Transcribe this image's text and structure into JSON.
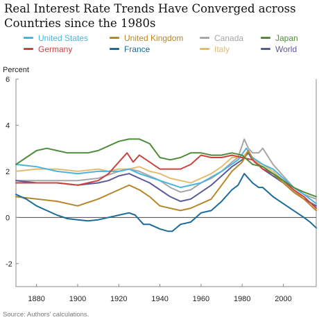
{
  "title": "Real Interest Rate Trends Have Converged across Countries since the 1980s",
  "source": "Source: Authors' calculations.",
  "chart_data": {
    "type": "line",
    "title": "Real Interest Rate Trends Have Converged across Countries since the 1980s",
    "xlabel": "",
    "ylabel": "Percent",
    "xlim": [
      1870,
      2016
    ],
    "ylim": [
      -3,
      6
    ],
    "x_ticks": [
      1880,
      1900,
      1920,
      1940,
      1960,
      1980,
      2000
    ],
    "y_ticks": [
      6,
      4,
      2,
      0,
      -2
    ],
    "grid": false,
    "zero_line": true,
    "legend_position": "top",
    "series": [
      {
        "name": "United States",
        "color": "#4bb3e0",
        "points": [
          [
            1870,
            2.3
          ],
          [
            1880,
            2.2
          ],
          [
            1890,
            2.0
          ],
          [
            1900,
            1.9
          ],
          [
            1910,
            2.0
          ],
          [
            1920,
            2.0
          ],
          [
            1925,
            2.1
          ],
          [
            1930,
            1.9
          ],
          [
            1940,
            1.6
          ],
          [
            1950,
            1.3
          ],
          [
            1960,
            1.5
          ],
          [
            1970,
            2.0
          ],
          [
            1978,
            2.5
          ],
          [
            1982,
            3.0
          ],
          [
            1985,
            2.6
          ],
          [
            1990,
            2.3
          ],
          [
            1995,
            2.1
          ],
          [
            2000,
            1.7
          ],
          [
            2005,
            1.3
          ],
          [
            2010,
            1.0
          ],
          [
            2016,
            0.6
          ]
        ]
      },
      {
        "name": "Germany",
        "color": "#c9443e",
        "points": [
          [
            1870,
            1.5
          ],
          [
            1880,
            1.5
          ],
          [
            1890,
            1.5
          ],
          [
            1900,
            1.4
          ],
          [
            1910,
            1.6
          ],
          [
            1915,
            1.9
          ],
          [
            1920,
            2.4
          ],
          [
            1924,
            2.8
          ],
          [
            1927,
            2.4
          ],
          [
            1930,
            2.7
          ],
          [
            1935,
            2.4
          ],
          [
            1940,
            2.1
          ],
          [
            1950,
            2.1
          ],
          [
            1955,
            2.3
          ],
          [
            1960,
            2.7
          ],
          [
            1965,
            2.6
          ],
          [
            1970,
            2.6
          ],
          [
            1975,
            2.7
          ],
          [
            1980,
            2.6
          ],
          [
            1985,
            2.5
          ],
          [
            1990,
            2.1
          ],
          [
            1995,
            1.9
          ],
          [
            2000,
            1.6
          ],
          [
            2005,
            1.2
          ],
          [
            2010,
            0.9
          ],
          [
            2016,
            0.4
          ]
        ]
      },
      {
        "name": "United Kingdom",
        "color": "#b8862a",
        "points": [
          [
            1870,
            0.9
          ],
          [
            1880,
            0.8
          ],
          [
            1890,
            0.7
          ],
          [
            1900,
            0.5
          ],
          [
            1910,
            0.8
          ],
          [
            1920,
            1.2
          ],
          [
            1925,
            1.4
          ],
          [
            1930,
            1.2
          ],
          [
            1935,
            0.9
          ],
          [
            1940,
            0.5
          ],
          [
            1950,
            0.3
          ],
          [
            1955,
            0.4
          ],
          [
            1960,
            0.6
          ],
          [
            1965,
            0.8
          ],
          [
            1970,
            1.4
          ],
          [
            1975,
            2.0
          ],
          [
            1980,
            2.4
          ],
          [
            1983,
            2.9
          ],
          [
            1986,
            2.4
          ],
          [
            1990,
            2.2
          ],
          [
            1995,
            1.9
          ],
          [
            2000,
            1.5
          ],
          [
            2005,
            1.1
          ],
          [
            2010,
            0.8
          ],
          [
            2016,
            0.3
          ]
        ]
      },
      {
        "name": "France",
        "color": "#1a6b9a",
        "points": [
          [
            1870,
            1.0
          ],
          [
            1875,
            0.8
          ],
          [
            1880,
            0.5
          ],
          [
            1885,
            0.3
          ],
          [
            1890,
            0.1
          ],
          [
            1895,
            -0.05
          ],
          [
            1900,
            -0.1
          ],
          [
            1905,
            -0.15
          ],
          [
            1910,
            -0.1
          ],
          [
            1915,
            0.0
          ],
          [
            1920,
            0.1
          ],
          [
            1925,
            0.2
          ],
          [
            1928,
            0.1
          ],
          [
            1932,
            -0.3
          ],
          [
            1935,
            -0.3
          ],
          [
            1940,
            -0.5
          ],
          [
            1944,
            -0.6
          ],
          [
            1946,
            -0.6
          ],
          [
            1950,
            -0.3
          ],
          [
            1955,
            -0.2
          ],
          [
            1960,
            0.2
          ],
          [
            1965,
            0.3
          ],
          [
            1970,
            0.7
          ],
          [
            1975,
            1.2
          ],
          [
            1978,
            1.4
          ],
          [
            1981,
            1.9
          ],
          [
            1985,
            1.5
          ],
          [
            1988,
            1.3
          ],
          [
            1990,
            1.3
          ],
          [
            1995,
            0.9
          ],
          [
            2000,
            0.6
          ],
          [
            2005,
            0.3
          ],
          [
            2010,
            0.0
          ],
          [
            2013,
            -0.2
          ],
          [
            2016,
            -0.45
          ]
        ]
      },
      {
        "name": "Canada",
        "color": "#a6a6a6",
        "points": [
          [
            1870,
            1.6
          ],
          [
            1880,
            1.6
          ],
          [
            1890,
            1.6
          ],
          [
            1900,
            1.6
          ],
          [
            1910,
            1.7
          ],
          [
            1920,
            2.0
          ],
          [
            1925,
            2.1
          ],
          [
            1930,
            2.0
          ],
          [
            1935,
            1.8
          ],
          [
            1940,
            1.6
          ],
          [
            1945,
            1.3
          ],
          [
            1950,
            1.1
          ],
          [
            1955,
            1.2
          ],
          [
            1960,
            1.5
          ],
          [
            1965,
            1.7
          ],
          [
            1970,
            2.0
          ],
          [
            1975,
            2.4
          ],
          [
            1978,
            2.6
          ],
          [
            1981,
            3.4
          ],
          [
            1983,
            3.0
          ],
          [
            1985,
            2.8
          ],
          [
            1988,
            2.8
          ],
          [
            1990,
            3.0
          ],
          [
            1995,
            2.3
          ],
          [
            2000,
            1.8
          ],
          [
            2005,
            1.3
          ],
          [
            2010,
            1.0
          ],
          [
            2016,
            0.8
          ]
        ]
      },
      {
        "name": "Italy",
        "color": "#e3bb6f",
        "points": [
          [
            1870,
            2.0
          ],
          [
            1880,
            2.1
          ],
          [
            1890,
            2.1
          ],
          [
            1900,
            2.0
          ],
          [
            1910,
            2.1
          ],
          [
            1915,
            2.0
          ],
          [
            1920,
            2.1
          ],
          [
            1925,
            2.1
          ],
          [
            1930,
            2.2
          ],
          [
            1935,
            2.0
          ],
          [
            1940,
            1.9
          ],
          [
            1945,
            1.7
          ],
          [
            1950,
            1.6
          ],
          [
            1955,
            1.5
          ],
          [
            1960,
            1.7
          ],
          [
            1965,
            1.9
          ],
          [
            1970,
            2.2
          ],
          [
            1975,
            2.6
          ],
          [
            1980,
            2.6
          ],
          [
            1983,
            2.9
          ],
          [
            1985,
            2.5
          ],
          [
            1990,
            2.3
          ],
          [
            1995,
            2.0
          ],
          [
            2000,
            1.6
          ],
          [
            2005,
            1.2
          ],
          [
            2010,
            0.8
          ],
          [
            2016,
            0.5
          ]
        ]
      },
      {
        "name": "Japan",
        "color": "#4f8c3c",
        "points": [
          [
            1870,
            2.3
          ],
          [
            1875,
            2.6
          ],
          [
            1880,
            2.9
          ],
          [
            1885,
            3.0
          ],
          [
            1890,
            2.9
          ],
          [
            1895,
            2.8
          ],
          [
            1900,
            2.8
          ],
          [
            1905,
            2.8
          ],
          [
            1910,
            2.9
          ],
          [
            1915,
            3.1
          ],
          [
            1920,
            3.3
          ],
          [
            1925,
            3.4
          ],
          [
            1930,
            3.4
          ],
          [
            1935,
            3.2
          ],
          [
            1940,
            2.6
          ],
          [
            1945,
            2.5
          ],
          [
            1950,
            2.6
          ],
          [
            1955,
            2.8
          ],
          [
            1960,
            2.8
          ],
          [
            1965,
            2.7
          ],
          [
            1970,
            2.7
          ],
          [
            1975,
            2.8
          ],
          [
            1980,
            2.7
          ],
          [
            1985,
            2.3
          ],
          [
            1990,
            2.2
          ],
          [
            1995,
            1.9
          ],
          [
            2000,
            1.6
          ],
          [
            2005,
            1.3
          ],
          [
            2010,
            1.1
          ],
          [
            2016,
            0.9
          ]
        ]
      },
      {
        "name": "World",
        "color": "#5a5a9a",
        "points": [
          [
            1870,
            1.6
          ],
          [
            1880,
            1.5
          ],
          [
            1890,
            1.5
          ],
          [
            1900,
            1.4
          ],
          [
            1910,
            1.5
          ],
          [
            1915,
            1.6
          ],
          [
            1920,
            1.8
          ],
          [
            1925,
            1.9
          ],
          [
            1930,
            1.7
          ],
          [
            1935,
            1.5
          ],
          [
            1940,
            1.2
          ],
          [
            1945,
            0.9
          ],
          [
            1950,
            0.7
          ],
          [
            1955,
            0.8
          ],
          [
            1960,
            1.1
          ],
          [
            1965,
            1.4
          ],
          [
            1970,
            1.8
          ],
          [
            1975,
            2.2
          ],
          [
            1980,
            2.5
          ],
          [
            1983,
            2.8
          ],
          [
            1985,
            2.5
          ],
          [
            1990,
            2.1
          ],
          [
            1995,
            1.8
          ],
          [
            2000,
            1.5
          ],
          [
            2005,
            1.1
          ],
          [
            2010,
            0.8
          ],
          [
            2016,
            0.5
          ]
        ]
      }
    ]
  }
}
